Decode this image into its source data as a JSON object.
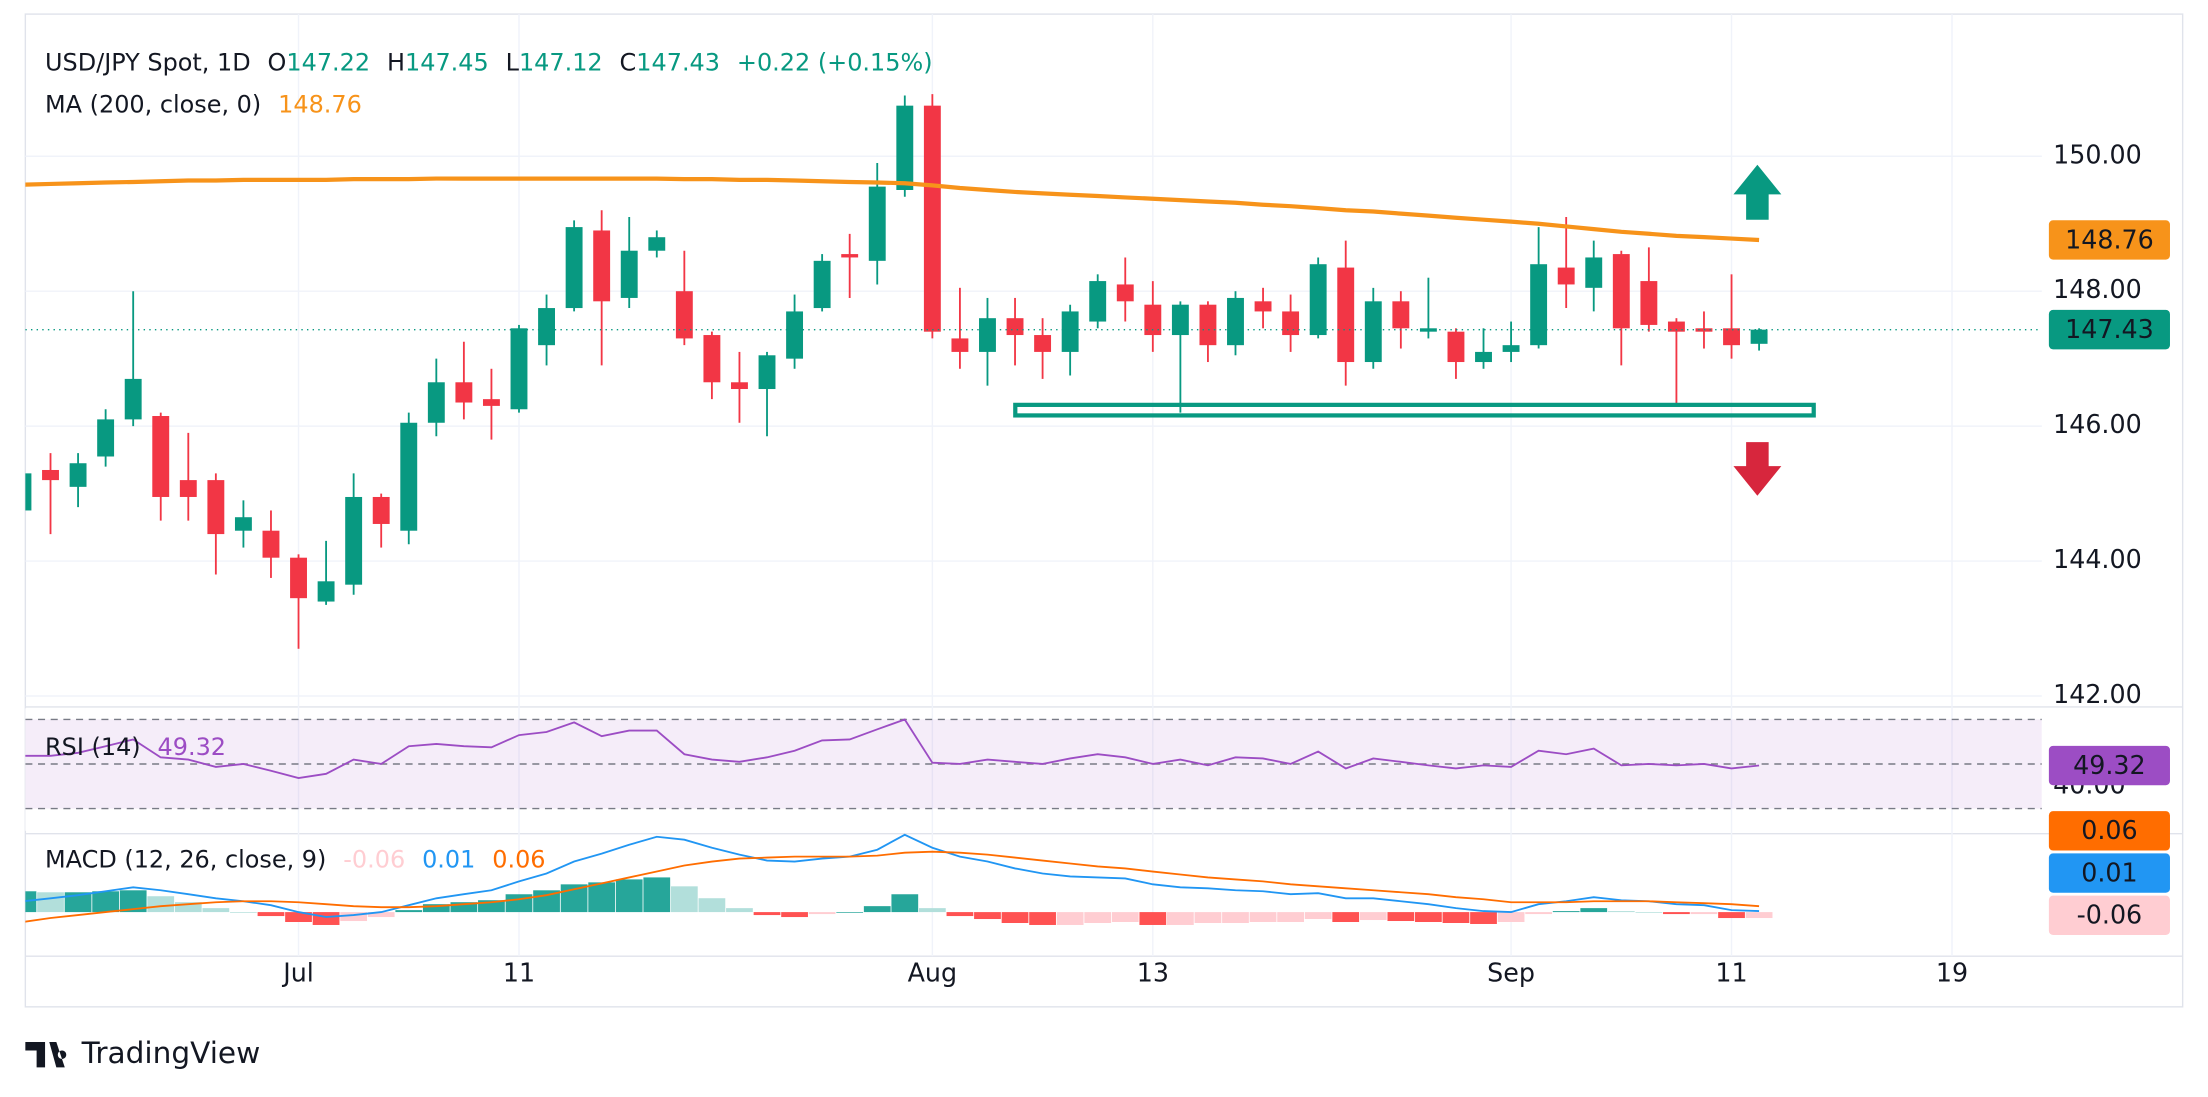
{
  "chart_data": [
    {
      "type": "candlestick",
      "title": "USD/JPY Spot, 1D",
      "ohlc_keys": [
        "O",
        "H",
        "L",
        "C"
      ],
      "change_label": "+0.22 (+0.15%)",
      "categories": [
        null,
        null,
        null,
        null,
        null,
        null,
        null,
        null,
        null,
        null,
        "Jul",
        null,
        null,
        null,
        null,
        null,
        null,
        null,
        "11",
        null,
        null,
        null,
        null,
        null,
        null,
        null,
        null,
        null,
        null,
        null,
        null,
        null,
        null,
        "Aug",
        null,
        null,
        null,
        null,
        null,
        null,
        null,
        "13",
        null,
        null,
        null,
        null,
        null,
        null,
        null,
        null,
        null,
        null,
        null,
        null,
        "Sep",
        null,
        null,
        null,
        null,
        null,
        null,
        null,
        "11",
        null,
        null,
        null,
        null,
        null,
        null,
        null,
        "19",
        null,
        null,
        null
      ],
      "open": [
        144.75,
        145.35,
        145.1,
        145.55,
        146.1,
        146.15,
        145.2,
        145.2,
        144.45,
        144.45,
        144.05,
        143.4,
        143.65,
        144.95,
        144.45,
        146.05,
        146.65,
        146.4,
        146.25,
        147.2,
        147.75,
        148.9,
        147.9,
        148.6,
        148.0,
        147.35,
        146.65,
        146.55,
        147.0,
        147.75,
        148.55,
        148.45,
        149.5,
        150.75,
        147.3,
        147.1,
        147.6,
        147.35,
        147.1,
        147.55,
        148.1,
        147.8,
        147.35,
        147.8,
        147.2,
        147.85,
        147.7,
        147.35,
        148.35,
        146.95,
        147.85,
        147.4,
        147.4,
        146.95,
        147.1,
        147.2,
        148.35,
        148.05,
        148.55,
        148.15,
        147.55,
        147.45,
        147.45,
        147.22,
        null,
        null,
        null,
        null,
        null,
        null,
        null,
        null,
        null,
        null
      ],
      "high": [
        145.4,
        145.6,
        145.6,
        146.25,
        148.0,
        146.2,
        145.9,
        145.3,
        144.9,
        144.75,
        144.1,
        144.3,
        145.3,
        145.0,
        146.2,
        147.0,
        147.25,
        146.85,
        147.5,
        147.95,
        149.05,
        149.2,
        149.1,
        148.9,
        148.6,
        147.4,
        147.1,
        147.1,
        147.95,
        148.55,
        148.85,
        149.9,
        150.9,
        150.92,
        148.05,
        147.9,
        147.9,
        147.6,
        147.8,
        148.25,
        148.5,
        148.15,
        147.85,
        147.85,
        148.0,
        148.05,
        147.95,
        148.5,
        148.75,
        148.05,
        148.0,
        148.2,
        147.45,
        147.45,
        147.55,
        148.95,
        149.1,
        148.75,
        148.6,
        148.65,
        147.6,
        147.7,
        148.25,
        147.45,
        null,
        null,
        null,
        null,
        null,
        null,
        null,
        null,
        null,
        null
      ],
      "low": [
        144.5,
        144.4,
        144.8,
        145.4,
        146.0,
        144.6,
        144.6,
        143.8,
        144.2,
        143.75,
        142.7,
        143.35,
        143.5,
        144.2,
        144.25,
        145.85,
        146.1,
        145.8,
        146.2,
        146.9,
        147.7,
        146.9,
        147.75,
        148.5,
        147.2,
        146.4,
        146.05,
        145.85,
        146.85,
        147.7,
        147.9,
        148.1,
        149.4,
        147.3,
        146.85,
        146.6,
        146.9,
        146.7,
        146.75,
        147.45,
        147.55,
        147.1,
        146.2,
        146.95,
        147.05,
        147.45,
        147.1,
        147.3,
        146.6,
        146.85,
        147.15,
        147.3,
        146.7,
        146.85,
        146.95,
        147.15,
        147.75,
        147.7,
        146.9,
        147.4,
        146.3,
        147.15,
        147.0,
        147.12,
        null,
        null,
        null,
        null,
        null,
        null,
        null,
        null,
        null,
        null
      ],
      "close": [
        145.3,
        145.2,
        145.45,
        146.1,
        146.7,
        144.95,
        144.95,
        144.4,
        144.65,
        144.05,
        143.45,
        143.7,
        144.95,
        144.55,
        146.05,
        146.65,
        146.35,
        146.3,
        147.45,
        147.75,
        148.95,
        147.85,
        148.6,
        148.8,
        147.3,
        146.65,
        146.55,
        147.05,
        147.7,
        148.45,
        148.5,
        149.55,
        150.75,
        147.4,
        147.1,
        147.6,
        147.35,
        147.1,
        147.7,
        148.15,
        147.85,
        147.35,
        147.8,
        147.2,
        147.9,
        147.7,
        147.35,
        148.4,
        146.95,
        147.85,
        147.45,
        147.45,
        146.95,
        147.1,
        147.2,
        148.4,
        148.1,
        148.5,
        147.45,
        147.5,
        147.4,
        147.4,
        147.2,
        147.43,
        null,
        null,
        null,
        null,
        null,
        null,
        null,
        null,
        null,
        null
      ],
      "up_color": "#089981",
      "down_color": "#f23645",
      "ma": {
        "name": "MA (200, close, 0)",
        "color": "#f7931a",
        "values": [
          149.58,
          149.59,
          149.6,
          149.61,
          149.62,
          149.63,
          149.64,
          149.64,
          149.65,
          149.65,
          149.65,
          149.65,
          149.66,
          149.66,
          149.66,
          149.67,
          149.67,
          149.67,
          149.67,
          149.67,
          149.67,
          149.67,
          149.67,
          149.67,
          149.66,
          149.66,
          149.65,
          149.65,
          149.64,
          149.63,
          149.62,
          149.61,
          149.6,
          149.57,
          149.53,
          149.5,
          149.47,
          149.45,
          149.43,
          149.41,
          149.39,
          149.37,
          149.35,
          149.33,
          149.31,
          149.28,
          149.26,
          149.23,
          149.2,
          149.18,
          149.15,
          149.12,
          149.09,
          149.06,
          149.03,
          149.0,
          148.96,
          148.92,
          148.88,
          148.85,
          148.82,
          148.8,
          148.78,
          148.76,
          null,
          null,
          null,
          null,
          null,
          null,
          null,
          null,
          null,
          null
        ]
      },
      "ylim": [
        141.88,
        151.94
      ],
      "yticks": [
        {
          "value": 142,
          "label": "142.00"
        },
        {
          "value": 144,
          "label": "144.00"
        },
        {
          "value": 146,
          "label": "146.00"
        },
        {
          "value": 148,
          "label": "148.00"
        },
        {
          "value": 150,
          "label": "150.00"
        }
      ],
      "grid": true
    },
    {
      "type": "line",
      "title": "RSI (14)",
      "color": "#9c4dc4",
      "values": [
        53.7,
        53.7,
        55,
        58,
        61,
        53,
        52,
        48.7,
        50,
        47,
        43.7,
        45.6,
        52,
        50,
        58,
        59,
        58,
        57.5,
        63,
        64.4,
        68.7,
        62.5,
        65,
        65,
        54.4,
        52,
        51,
        53,
        56,
        60.6,
        61,
        65.6,
        70,
        50.6,
        50,
        52,
        51,
        50,
        52.5,
        54.4,
        53,
        50,
        52,
        49.4,
        53,
        52.5,
        50,
        55.6,
        48,
        52.5,
        51,
        49.4,
        48,
        49.4,
        48.7,
        56,
        54.4,
        56.9,
        49.4,
        50,
        49.4,
        50,
        48,
        49.32
      ],
      "ylim": [
        20,
        75
      ],
      "yticks": [
        {
          "value": 40,
          "label": "40.00"
        }
      ],
      "levels": [
        70,
        50,
        30
      ],
      "band": [
        30,
        70
      ]
    },
    {
      "type": "macd",
      "title": "MACD (12, 26, close, 9)",
      "histogram": [
        0.21,
        0.2,
        0.2,
        0.21,
        0.22,
        0.16,
        0.1,
        0.04,
        0.0,
        -0.04,
        -0.1,
        -0.13,
        -0.09,
        -0.05,
        0.02,
        0.08,
        0.1,
        0.12,
        0.18,
        0.22,
        0.28,
        0.3,
        0.33,
        0.35,
        0.26,
        0.14,
        0.04,
        -0.03,
        -0.05,
        -0.02,
        0.0,
        0.06,
        0.18,
        0.04,
        -0.04,
        -0.07,
        -0.11,
        -0.13,
        -0.13,
        -0.11,
        -0.1,
        -0.13,
        -0.13,
        -0.11,
        -0.11,
        -0.1,
        -0.1,
        -0.07,
        -0.1,
        -0.08,
        -0.09,
        -0.1,
        -0.11,
        -0.12,
        -0.1,
        -0.02,
        0.01,
        0.04,
        0.01,
        0.0,
        -0.02,
        -0.02,
        -0.06,
        -0.06
      ],
      "macd": [
        0.11,
        0.14,
        0.17,
        0.21,
        0.25,
        0.22,
        0.18,
        0.14,
        0.11,
        0.07,
        0.0,
        -0.05,
        -0.03,
        0.0,
        0.07,
        0.14,
        0.18,
        0.22,
        0.31,
        0.39,
        0.51,
        0.59,
        0.68,
        0.76,
        0.73,
        0.65,
        0.58,
        0.52,
        0.51,
        0.54,
        0.56,
        0.63,
        0.78,
        0.65,
        0.56,
        0.51,
        0.44,
        0.39,
        0.36,
        0.35,
        0.34,
        0.28,
        0.25,
        0.24,
        0.22,
        0.21,
        0.18,
        0.19,
        0.14,
        0.14,
        0.11,
        0.08,
        0.04,
        0.01,
        0.0,
        0.08,
        0.11,
        0.15,
        0.12,
        0.11,
        0.08,
        0.07,
        0.02,
        0.01
      ],
      "signal": [
        -0.1,
        -0.06,
        -0.03,
        0.0,
        0.03,
        0.06,
        0.08,
        0.1,
        0.11,
        0.11,
        0.1,
        0.08,
        0.06,
        0.05,
        0.05,
        0.06,
        0.08,
        0.1,
        0.13,
        0.17,
        0.23,
        0.29,
        0.35,
        0.41,
        0.47,
        0.51,
        0.54,
        0.55,
        0.56,
        0.56,
        0.56,
        0.57,
        0.6,
        0.61,
        0.6,
        0.58,
        0.55,
        0.52,
        0.49,
        0.46,
        0.44,
        0.41,
        0.38,
        0.35,
        0.33,
        0.31,
        0.28,
        0.26,
        0.24,
        0.22,
        0.2,
        0.18,
        0.15,
        0.13,
        0.1,
        0.1,
        0.1,
        0.11,
        0.11,
        0.11,
        0.1,
        0.09,
        0.08,
        0.06
      ],
      "macd_color": "#2196f3",
      "signal_color": "#ff6d00",
      "histogram_colors": [
        "#26a69a",
        "#b2dfdb",
        "#ff5252",
        "#ffcdd2"
      ],
      "ylim": [
        -0.26,
        0.82
      ]
    }
  ],
  "branding": "TradingView"
}
